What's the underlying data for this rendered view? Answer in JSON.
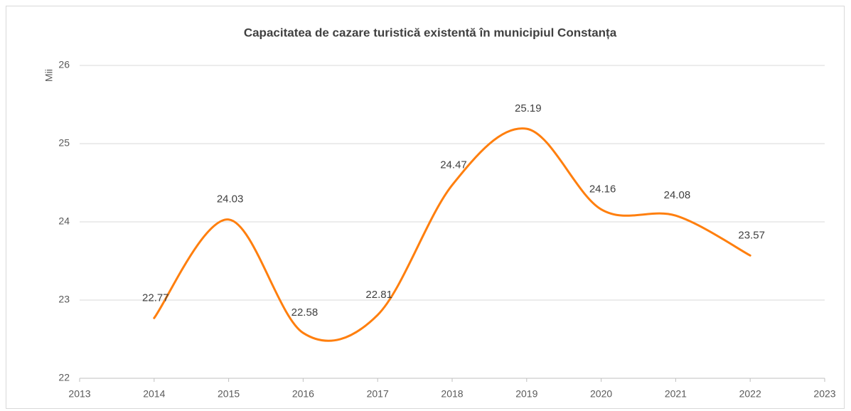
{
  "chart_data": {
    "type": "line",
    "title": "Capacitatea de cazare turistică existentă în municipiul Constanța",
    "ylabel": "Mii",
    "x": [
      2014,
      2015,
      2016,
      2017,
      2018,
      2019,
      2020,
      2021,
      2022
    ],
    "values": [
      22.77,
      24.03,
      22.58,
      22.81,
      24.47,
      25.19,
      24.16,
      24.08,
      23.57
    ],
    "color": "#ff7f0e",
    "smooth": true,
    "xlim": [
      2013,
      2023
    ],
    "xticks": [
      2013,
      2014,
      2015,
      2016,
      2017,
      2018,
      2019,
      2020,
      2021,
      2022,
      2023
    ],
    "ylim": [
      22,
      26
    ],
    "yticks": [
      22,
      23,
      24,
      25,
      26
    ],
    "grid": true
  }
}
